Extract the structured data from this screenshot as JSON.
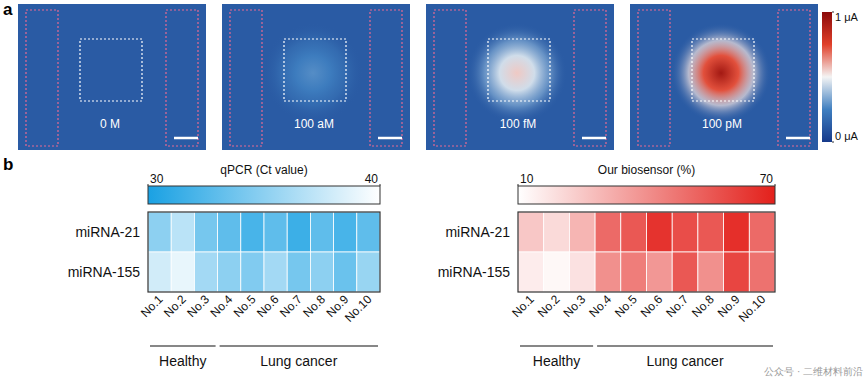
{
  "chart_data": [
    {
      "type": "image_map",
      "panel": "a",
      "background": 0.12,
      "images": [
        {
          "label": "0 M",
          "peak": 0.12
        },
        {
          "label": "100 aM",
          "peak": 0.28
        },
        {
          "label": "100 fM",
          "peak": 0.56
        },
        {
          "label": "100 pM",
          "peak": 0.93
        }
      ],
      "colorbar": {
        "range": [
          0,
          1
        ],
        "ticks": [
          {
            "value": 0,
            "label": "0 μA"
          },
          {
            "value": 1,
            "label": "1 μA"
          }
        ],
        "colors": [
          "#163a8a",
          "#3f7fc0",
          "#f4f4f4",
          "#e0402a",
          "#8b0a0a"
        ]
      }
    },
    {
      "type": "heatmap",
      "panel": "b",
      "title": "qPCR (Ct value)",
      "rows": [
        "miRNA-21",
        "miRNA-155"
      ],
      "columns": [
        "No.1",
        "No.2",
        "No.3",
        "No.4",
        "No.5",
        "No.6",
        "No.7",
        "No.8",
        "No.9",
        "No.10"
      ],
      "cells": [
        [
          35,
          37,
          34,
          33,
          32,
          33,
          31.5,
          33,
          32,
          33
        ],
        [
          38,
          39,
          36,
          35,
          34.5,
          36,
          34,
          35,
          33.5,
          35.5
        ]
      ],
      "groups": [
        {
          "label": "Healthy",
          "columns": [
            "No.1",
            "No.2",
            "No.3"
          ]
        },
        {
          "label": "Lung cancer",
          "columns": [
            "No.4",
            "No.5",
            "No.6",
            "No.7",
            "No.8",
            "No.9",
            "No.10"
          ]
        }
      ],
      "colorbar": {
        "range": [
          30,
          40
        ],
        "ticks": [
          30,
          40
        ],
        "colors": [
          "#1aa1e3",
          "#ffffff"
        ]
      }
    },
    {
      "type": "heatmap",
      "title": "Our biosensor (%)",
      "rows": [
        "miRNA-21",
        "miRNA-155"
      ],
      "columns": [
        "No.1",
        "No.2",
        "No.3",
        "No.4",
        "No.5",
        "No.6",
        "No.7",
        "No.8",
        "No.9",
        "No.10"
      ],
      "cells": [
        [
          25,
          20,
          30,
          50,
          55,
          65,
          58,
          55,
          66,
          50
        ],
        [
          15,
          12,
          18,
          40,
          45,
          38,
          55,
          40,
          60,
          48
        ]
      ],
      "groups": [
        {
          "label": "Healthy",
          "columns": [
            "No.1",
            "No.2",
            "No.3"
          ]
        },
        {
          "label": "Lung cancer",
          "columns": [
            "No.4",
            "No.5",
            "No.6",
            "No.7",
            "No.8",
            "No.9",
            "No.10"
          ]
        }
      ],
      "colorbar": {
        "range": [
          10,
          70
        ],
        "ticks": [
          10,
          70
        ],
        "colors": [
          "#ffffff",
          "#e3201b"
        ]
      }
    }
  ],
  "watermark": "公众号 · 二维材料前沿"
}
